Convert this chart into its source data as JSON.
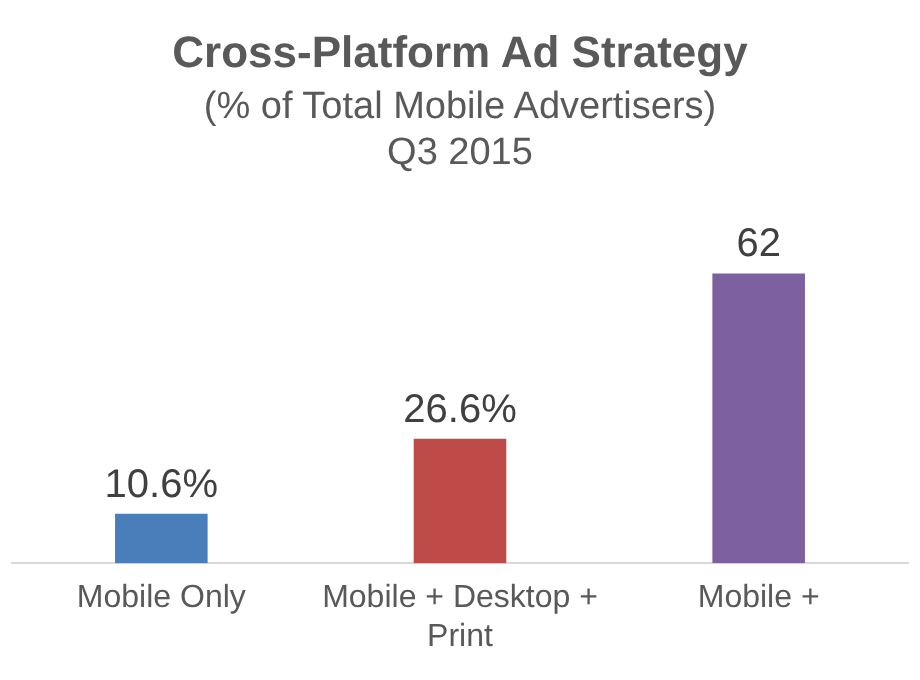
{
  "chart_data": {
    "type": "bar",
    "title": "Cross-Platform Ad Strategy",
    "subtitle": "(% of Total Mobile Advertisers)\nQ3 2015",
    "categories": [
      "Mobile Only",
      "Mobile + Desktop + Print",
      "Mobile +"
    ],
    "values": [
      10.6,
      26.6,
      62
    ],
    "colors": [
      "#4a7ebb",
      "#be4b48",
      "#7d60a0"
    ],
    "value_labels": [
      "10.6%",
      "26.6%",
      "62"
    ],
    "grid": false,
    "legend": false
  }
}
